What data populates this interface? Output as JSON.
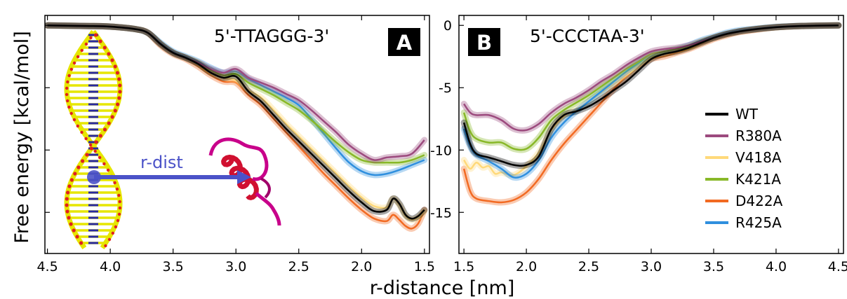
{
  "ylabel": "Free energy [kcal/mol]",
  "xlabel": "r-distance [nm]",
  "inset_label": "r-dist",
  "colors": {
    "WT": "#000000",
    "R380A": "#9c4a7e",
    "V418A": "#ffd97a",
    "K421A": "#88b828",
    "D422A": "#f26a22",
    "R425A": "#2f8fde",
    "badge_bg": "#000000",
    "arrow": "#4b52c8",
    "dna": "#e6e600",
    "protein": "#c8008a"
  },
  "legend": [
    "WT",
    "R380A",
    "V418A",
    "K421A",
    "D422A",
    "R425A"
  ],
  "chart_data": [
    {
      "type": "line",
      "panel": "A",
      "title": "5'-TTAGGG-3'",
      "xlim": [
        4.52,
        1.46
      ],
      "ylim": [
        -18.3,
        0.8
      ],
      "xticks": [
        "4.5",
        "4.0",
        "3.5",
        "3.0",
        "2.5",
        "2.0",
        "1.5"
      ],
      "series": [
        {
          "name": "WT",
          "x": [
            4.5,
            4.2,
            4.0,
            3.8,
            3.7,
            3.6,
            3.5,
            3.4,
            3.3,
            3.2,
            3.1,
            3.0,
            2.9,
            2.8,
            2.7,
            2.6,
            2.5,
            2.4,
            2.3,
            2.2,
            2.1,
            2.0,
            1.9,
            1.8,
            1.75,
            1.7,
            1.65,
            1.6,
            1.55,
            1.5
          ],
          "y": [
            0,
            -0.05,
            -0.1,
            -0.3,
            -0.6,
            -1.5,
            -2.2,
            -2.6,
            -3.1,
            -3.8,
            -4.2,
            -4.1,
            -5.3,
            -6.1,
            -7.2,
            -8.3,
            -9.3,
            -10.3,
            -11.3,
            -12.3,
            -13.3,
            -14.2,
            -14.9,
            -14.8,
            -13.9,
            -14.3,
            -15.2,
            -15.5,
            -15.3,
            -14.8
          ]
        },
        {
          "name": "R380A",
          "x": [
            4.5,
            4.2,
            4.0,
            3.8,
            3.7,
            3.6,
            3.5,
            3.4,
            3.3,
            3.2,
            3.1,
            3.0,
            2.9,
            2.8,
            2.7,
            2.6,
            2.5,
            2.4,
            2.3,
            2.2,
            2.1,
            2.0,
            1.9,
            1.8,
            1.7,
            1.6,
            1.5
          ],
          "y": [
            0,
            -0.05,
            -0.1,
            -0.3,
            -0.6,
            -1.5,
            -2.2,
            -2.6,
            -3.0,
            -3.5,
            -3.8,
            -3.5,
            -4.2,
            -4.6,
            -5.0,
            -5.5,
            -6.0,
            -6.8,
            -7.7,
            -8.6,
            -9.6,
            -10.3,
            -10.8,
            -10.6,
            -10.5,
            -10.3,
            -9.2
          ]
        },
        {
          "name": "V418A",
          "x": [
            4.5,
            4.2,
            4.0,
            3.8,
            3.7,
            3.6,
            3.5,
            3.4,
            3.3,
            3.2,
            3.1,
            3.0,
            2.9,
            2.8,
            2.7,
            2.6,
            2.5,
            2.4,
            2.3,
            2.2,
            2.1,
            2.0,
            1.9,
            1.8,
            1.75,
            1.7,
            1.65,
            1.6,
            1.55,
            1.5
          ],
          "y": [
            0,
            -0.05,
            -0.1,
            -0.3,
            -0.6,
            -1.5,
            -2.2,
            -2.6,
            -3.1,
            -3.8,
            -4.2,
            -4.4,
            -5.2,
            -5.8,
            -6.8,
            -7.9,
            -8.9,
            -9.9,
            -10.9,
            -11.9,
            -12.9,
            -13.8,
            -14.5,
            -14.6,
            -13.9,
            -14.4,
            -15.3,
            -15.6,
            -15.4,
            -14.9
          ]
        },
        {
          "name": "K421A",
          "x": [
            4.5,
            4.2,
            4.0,
            3.8,
            3.7,
            3.6,
            3.5,
            3.4,
            3.3,
            3.2,
            3.1,
            3.0,
            2.9,
            2.8,
            2.7,
            2.6,
            2.5,
            2.4,
            2.3,
            2.2,
            2.1,
            2.0,
            1.9,
            1.8,
            1.7,
            1.6,
            1.5
          ],
          "y": [
            0,
            -0.05,
            -0.1,
            -0.3,
            -0.6,
            -1.5,
            -2.2,
            -2.6,
            -3.0,
            -3.6,
            -4.0,
            -3.9,
            -4.6,
            -5.1,
            -5.6,
            -6.2,
            -6.8,
            -7.6,
            -8.5,
            -9.4,
            -10.2,
            -10.8,
            -11.0,
            -11.0,
            -11.0,
            -10.8,
            -10.4
          ]
        },
        {
          "name": "D422A",
          "x": [
            4.5,
            4.2,
            4.0,
            3.8,
            3.7,
            3.6,
            3.5,
            3.4,
            3.3,
            3.2,
            3.1,
            3.0,
            2.9,
            2.8,
            2.7,
            2.6,
            2.5,
            2.4,
            2.3,
            2.2,
            2.1,
            2.0,
            1.9,
            1.8,
            1.75,
            1.7,
            1.65,
            1.6,
            1.55,
            1.5
          ],
          "y": [
            0,
            -0.05,
            -0.1,
            -0.3,
            -0.6,
            -1.6,
            -2.3,
            -2.7,
            -3.3,
            -4.0,
            -4.5,
            -4.6,
            -5.6,
            -6.4,
            -7.5,
            -8.6,
            -9.7,
            -10.8,
            -11.9,
            -12.9,
            -13.9,
            -14.8,
            -15.5,
            -15.7,
            -15.2,
            -15.6,
            -16.1,
            -16.3,
            -15.9,
            -14.8
          ]
        },
        {
          "name": "R425A",
          "x": [
            4.5,
            4.2,
            4.0,
            3.8,
            3.7,
            3.6,
            3.5,
            3.4,
            3.3,
            3.2,
            3.1,
            3.0,
            2.9,
            2.8,
            2.7,
            2.6,
            2.5,
            2.4,
            2.3,
            2.2,
            2.1,
            2.0,
            1.9,
            1.8,
            1.7,
            1.6,
            1.5
          ],
          "y": [
            0,
            -0.05,
            -0.1,
            -0.3,
            -0.6,
            -1.4,
            -2.1,
            -2.5,
            -2.9,
            -3.4,
            -3.8,
            -3.7,
            -4.3,
            -4.8,
            -5.3,
            -5.8,
            -6.4,
            -7.5,
            -8.7,
            -9.9,
            -11.0,
            -11.7,
            -12.0,
            -11.9,
            -11.6,
            -11.2,
            -10.8
          ]
        }
      ]
    },
    {
      "type": "line",
      "panel": "B",
      "title": "5'-CCCTAA-3'",
      "xlim": [
        1.46,
        4.54
      ],
      "ylim": [
        -18.3,
        0.8
      ],
      "xticks": [
        "1.5",
        "2.0",
        "2.5",
        "3.0",
        "3.5",
        "4.0",
        "4.5"
      ],
      "yticks": [
        "0",
        "-5",
        "-10",
        "-15"
      ],
      "legend_position": "right",
      "series": [
        {
          "name": "WT",
          "x": [
            1.5,
            1.55,
            1.6,
            1.7,
            1.8,
            1.9,
            2.0,
            2.1,
            2.2,
            2.3,
            2.4,
            2.5,
            2.6,
            2.7,
            2.8,
            2.9,
            3.0,
            3.1,
            3.2,
            3.3,
            3.4,
            3.5,
            3.6,
            3.7,
            3.8,
            4.0,
            4.2,
            4.5
          ],
          "y": [
            -7.8,
            -9.5,
            -10.3,
            -10.6,
            -10.9,
            -11.2,
            -11.2,
            -10.5,
            -8.3,
            -7.2,
            -6.9,
            -6.5,
            -5.9,
            -5.2,
            -4.5,
            -3.6,
            -2.7,
            -2.3,
            -2.1,
            -1.8,
            -1.4,
            -1.0,
            -0.7,
            -0.5,
            -0.35,
            -0.15,
            -0.05,
            0
          ]
        },
        {
          "name": "R380A",
          "x": [
            1.5,
            1.55,
            1.6,
            1.7,
            1.8,
            1.9,
            2.0,
            2.1,
            2.2,
            2.3,
            2.4,
            2.5,
            2.6,
            2.7,
            2.8,
            2.9,
            3.0,
            3.1,
            3.2,
            3.3,
            3.4,
            3.5,
            3.6,
            3.7,
            3.8,
            4.0,
            4.2,
            4.5
          ],
          "y": [
            -6.3,
            -7.0,
            -7.2,
            -7.2,
            -7.6,
            -8.3,
            -8.4,
            -7.9,
            -7.0,
            -6.3,
            -5.8,
            -5.2,
            -4.5,
            -3.9,
            -3.2,
            -2.6,
            -2.1,
            -1.9,
            -1.8,
            -1.6,
            -1.3,
            -1.0,
            -0.7,
            -0.5,
            -0.35,
            -0.15,
            -0.05,
            0
          ]
        },
        {
          "name": "V418A",
          "x": [
            1.5,
            1.55,
            1.6,
            1.65,
            1.7,
            1.75,
            1.8,
            1.9,
            2.0,
            2.1,
            2.2,
            2.3,
            2.4,
            2.5,
            2.6,
            2.7,
            2.8,
            2.9,
            3.0,
            3.1,
            3.2,
            3.3,
            3.4,
            3.5,
            3.6,
            3.7,
            3.8,
            4.0,
            4.2,
            4.5
          ],
          "y": [
            -10.8,
            -11.5,
            -11.0,
            -11.4,
            -11.3,
            -11.9,
            -11.8,
            -12.0,
            -11.3,
            -10.2,
            -8.4,
            -7.3,
            -6.8,
            -6.1,
            -5.4,
            -4.7,
            -4.0,
            -3.3,
            -2.6,
            -2.3,
            -2.1,
            -1.8,
            -1.4,
            -1.0,
            -0.7,
            -0.5,
            -0.35,
            -0.15,
            -0.05,
            0
          ]
        },
        {
          "name": "K421A",
          "x": [
            1.5,
            1.55,
            1.6,
            1.7,
            1.8,
            1.9,
            2.0,
            2.1,
            2.2,
            2.3,
            2.4,
            2.5,
            2.6,
            2.7,
            2.8,
            2.9,
            3.0,
            3.1,
            3.2,
            3.3,
            3.4,
            3.5,
            3.6,
            3.7,
            3.8,
            4.0,
            4.2,
            4.5
          ],
          "y": [
            -7.0,
            -8.5,
            -9.1,
            -9.4,
            -9.4,
            -9.9,
            -9.9,
            -9.0,
            -7.6,
            -6.8,
            -6.2,
            -5.6,
            -4.9,
            -4.2,
            -3.5,
            -2.9,
            -2.3,
            -2.1,
            -1.9,
            -1.7,
            -1.3,
            -1.0,
            -0.7,
            -0.5,
            -0.35,
            -0.15,
            -0.05,
            0
          ]
        },
        {
          "name": "D422A",
          "x": [
            1.5,
            1.55,
            1.6,
            1.7,
            1.8,
            1.9,
            2.0,
            2.1,
            2.2,
            2.3,
            2.4,
            2.5,
            2.6,
            2.7,
            2.8,
            2.9,
            3.0,
            3.1,
            3.2,
            3.3,
            3.4,
            3.5,
            3.6,
            3.7,
            3.8,
            4.0,
            4.2,
            4.5
          ],
          "y": [
            -11.5,
            -13.3,
            -13.9,
            -14.1,
            -14.2,
            -14.0,
            -13.4,
            -12.3,
            -10.8,
            -9.5,
            -8.4,
            -7.3,
            -6.2,
            -5.1,
            -4.1,
            -3.3,
            -2.7,
            -2.5,
            -2.2,
            -1.9,
            -1.5,
            -1.1,
            -0.8,
            -0.55,
            -0.4,
            -0.15,
            -0.05,
            0
          ]
        },
        {
          "name": "R425A",
          "x": [
            1.5,
            1.55,
            1.6,
            1.7,
            1.8,
            1.9,
            2.0,
            2.1,
            2.2,
            2.3,
            2.4,
            2.5,
            2.6,
            2.7,
            2.8,
            2.9,
            3.0,
            3.1,
            3.2,
            3.3,
            3.4,
            3.5,
            3.6,
            3.7,
            3.8,
            4.0,
            4.2,
            4.5
          ],
          "y": [
            -8.3,
            -9.7,
            -10.4,
            -10.9,
            -11.5,
            -12.2,
            -11.9,
            -10.8,
            -9.0,
            -7.8,
            -6.9,
            -6.1,
            -5.3,
            -4.5,
            -3.7,
            -3.0,
            -2.3,
            -2.1,
            -1.9,
            -1.6,
            -1.2,
            -0.9,
            -0.6,
            -0.4,
            -0.3,
            -0.12,
            -0.04,
            0
          ]
        }
      ]
    }
  ]
}
